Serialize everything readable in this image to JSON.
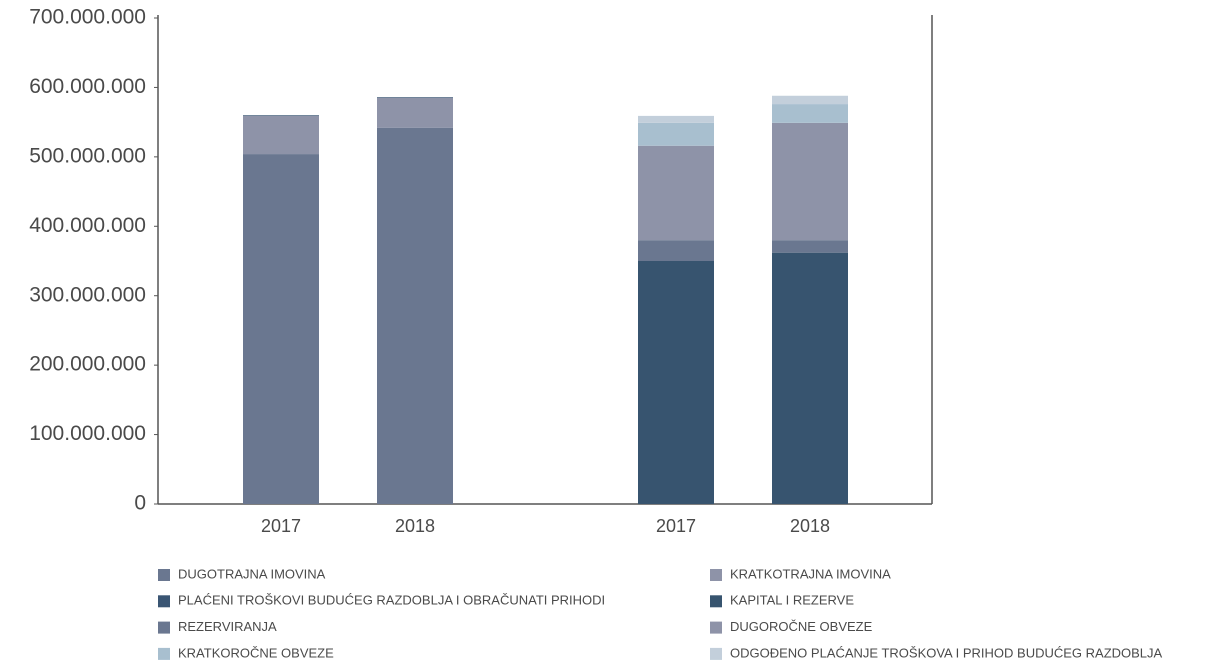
{
  "chart_data": {
    "type": "stacked_bar",
    "categories": [
      "2017",
      "2018",
      "2017",
      "2018"
    ],
    "ylim": [
      0,
      700000000
    ],
    "yticks": [
      0,
      {
        "value": 100000000,
        "label": "100.000.000"
      },
      {
        "value": 200000000,
        "label": "200.000.000"
      },
      {
        "value": 300000000,
        "label": "300.000.000"
      },
      {
        "value": 400000000,
        "label": "400.000.000"
      },
      {
        "value": 500000000,
        "label": "500.000.000"
      },
      {
        "value": 600000000,
        "label": "600.000.000"
      },
      {
        "value": 700000000,
        "label": "700.000.000"
      }
    ],
    "series": [
      {
        "name": "DUGOTRAJNA IMOVINA",
        "color": "#6a7790",
        "values": [
          504000000,
          542000000,
          null,
          null
        ]
      },
      {
        "name": "KRATKOTRAJNA IMOVINA",
        "color": "#8e93a8",
        "values": [
          55000000,
          43000000,
          null,
          null
        ]
      },
      {
        "name": "PLAĆENI TROŠKOVI BUDUĆEG RAZDOBLJA I OBRAČUNATI PRIHODI",
        "color": "#3a5573",
        "values": [
          1000000,
          1000000,
          null,
          null
        ]
      },
      {
        "name": "KAPITAL I REZERVE",
        "color": "#37546f",
        "values": [
          null,
          null,
          350000000,
          362000000
        ]
      },
      {
        "name": "REZERVIRANJA",
        "color": "#6a7790",
        "values": [
          null,
          null,
          30000000,
          18000000
        ]
      },
      {
        "name": "DUGOROČNE OBVEZE",
        "color": "#8e93a8",
        "values": [
          null,
          null,
          136000000,
          169000000
        ]
      },
      {
        "name": "KRATKOROČNE OBVEZE",
        "color": "#a8bfcf",
        "values": [
          null,
          null,
          33000000,
          27000000
        ]
      },
      {
        "name": "ODGOĐENO PLAĆANJE TROŠKOVA I PRIHOD BUDUĆEG RAZDOBLJA",
        "color": "#c3cfdb",
        "values": [
          null,
          null,
          10000000,
          12000000
        ]
      }
    ]
  }
}
